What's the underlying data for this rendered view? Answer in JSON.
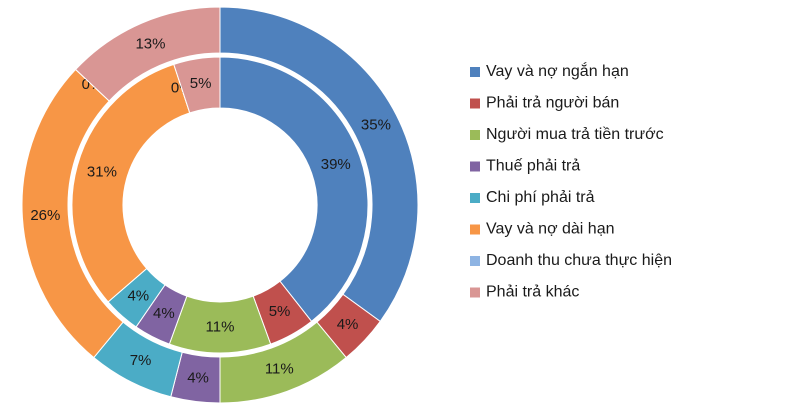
{
  "chart_data": {
    "type": "doughnut",
    "categories": [
      "Vay và nợ ngắn hạn",
      "Phải trả người bán",
      "Người mua trả tiền trước",
      "Thuế phải trả",
      "Chi phí phải trả",
      "Vay và nợ dài hạn",
      "Doanh thu chưa thực hiện",
      "Phải trả khác"
    ],
    "colors": [
      "#4f81bd",
      "#c0504d",
      "#9bbb59",
      "#8064a2",
      "#4bacc6",
      "#f79646",
      "#8eb4e3",
      "#d99694"
    ],
    "series": [
      {
        "values": [
          35,
          4,
          11,
          4,
          7,
          26,
          0,
          13
        ],
        "value_labels": [
          "35%",
          "4%",
          "11%",
          "4%",
          "7%",
          "26%",
          "0%",
          "13%"
        ]
      },
      {
        "values": [
          39,
          5,
          11,
          4,
          4,
          31,
          0,
          5
        ],
        "value_labels": [
          "39%",
          "5%",
          "11%",
          "4%",
          "4%",
          "31%",
          "0%",
          "5%"
        ]
      }
    ],
    "legend": "right"
  }
}
